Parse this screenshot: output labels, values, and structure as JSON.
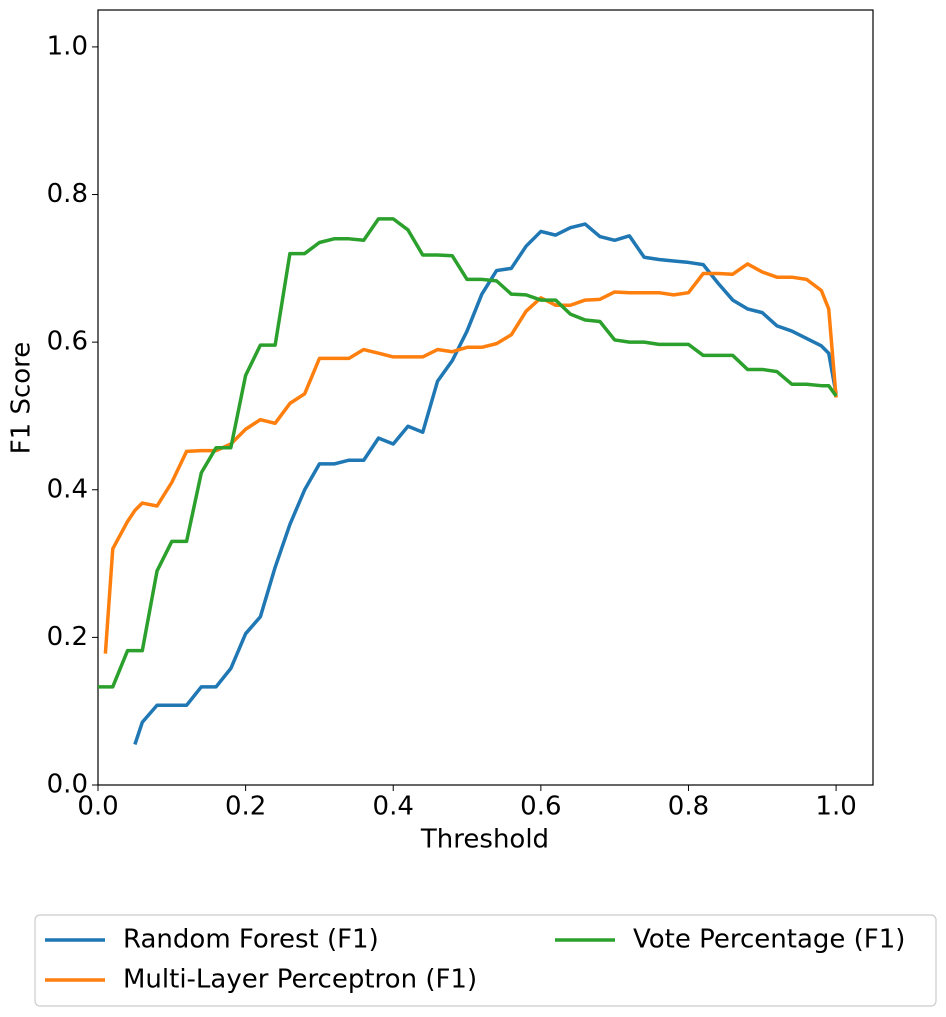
{
  "chart_data": {
    "type": "line",
    "xlabel": "Threshold",
    "ylabel": "F1 Score",
    "x": [
      0,
      0.01,
      0.02,
      0.04,
      0.05,
      0.06,
      0.08,
      0.1,
      0.12,
      0.14,
      0.16,
      0.18,
      0.2,
      0.22,
      0.24,
      0.26,
      0.28,
      0.3,
      0.32,
      0.34,
      0.36,
      0.38,
      0.4,
      0.42,
      0.44,
      0.46,
      0.48,
      0.5,
      0.52,
      0.54,
      0.56,
      0.58,
      0.6,
      0.62,
      0.64,
      0.66,
      0.68,
      0.7,
      0.72,
      0.74,
      0.76,
      0.78,
      0.8,
      0.82,
      0.84,
      0.86,
      0.88,
      0.9,
      0.92,
      0.94,
      0.96,
      0.98,
      0.99,
      1.0
    ],
    "series": [
      {
        "name": "Random Forest (F1)",
        "color": "#1f77b4",
        "values": [
          null,
          null,
          null,
          null,
          0.055,
          0.085,
          0.108,
          0.108,
          0.108,
          0.133,
          0.133,
          0.158,
          0.205,
          0.228,
          0.295,
          0.353,
          0.4,
          0.435,
          0.435,
          0.44,
          0.44,
          0.47,
          0.462,
          0.486,
          0.478,
          0.547,
          0.575,
          0.615,
          0.665,
          0.697,
          0.7,
          0.73,
          0.75,
          0.745,
          0.755,
          0.76,
          0.743,
          0.738,
          0.744,
          0.715,
          0.712,
          0.71,
          0.708,
          0.705,
          0.68,
          0.657,
          0.645,
          0.64,
          0.622,
          0.615,
          0.605,
          0.595,
          0.585,
          0.53
        ]
      },
      {
        "name": "Multi-Layer Perceptron (F1)",
        "color": "#ff7f0e",
        "values": [
          null,
          0.178,
          0.32,
          0.357,
          0.372,
          0.382,
          0.378,
          0.41,
          0.452,
          0.453,
          0.453,
          0.462,
          0.482,
          0.495,
          0.49,
          0.517,
          0.53,
          0.578,
          0.578,
          0.578,
          0.59,
          0.585,
          0.58,
          0.58,
          0.58,
          0.59,
          0.587,
          0.593,
          0.593,
          0.598,
          0.61,
          0.642,
          0.66,
          0.65,
          0.65,
          0.657,
          0.658,
          0.668,
          0.667,
          0.667,
          0.667,
          0.664,
          0.667,
          0.693,
          0.693,
          0.692,
          0.706,
          0.695,
          0.688,
          0.688,
          0.685,
          0.67,
          0.645,
          0.525
        ]
      },
      {
        "name": "Vote Percentage (F1)",
        "color": "#2ca02c",
        "values": [
          0.133,
          0.133,
          0.133,
          0.182,
          0.182,
          0.182,
          0.29,
          0.33,
          0.33,
          0.423,
          0.457,
          0.457,
          0.555,
          0.596,
          0.596,
          0.72,
          0.72,
          0.735,
          0.74,
          0.74,
          0.738,
          0.767,
          0.767,
          0.752,
          0.718,
          0.718,
          0.717,
          0.685,
          0.685,
          0.683,
          0.665,
          0.664,
          0.657,
          0.657,
          0.638,
          0.63,
          0.628,
          0.603,
          0.6,
          0.6,
          0.597,
          0.597,
          0.597,
          0.582,
          0.582,
          0.582,
          0.563,
          0.563,
          0.56,
          0.543,
          0.543,
          0.541,
          0.541,
          0.527
        ]
      }
    ],
    "xlim": [
      0,
      1.05
    ],
    "ylim": [
      0,
      1.05
    ],
    "xticks": [
      {
        "value": 0,
        "label": "0.0"
      },
      0.2,
      0.4,
      0.6,
      0.8,
      {
        "value": 1,
        "label": "1.0"
      }
    ],
    "yticks": [
      {
        "value": 0,
        "label": "0.0"
      },
      0.2,
      0.4,
      0.6,
      0.8,
      {
        "value": 1,
        "label": "1.0"
      }
    ],
    "grid": false,
    "legend": "lower center"
  }
}
